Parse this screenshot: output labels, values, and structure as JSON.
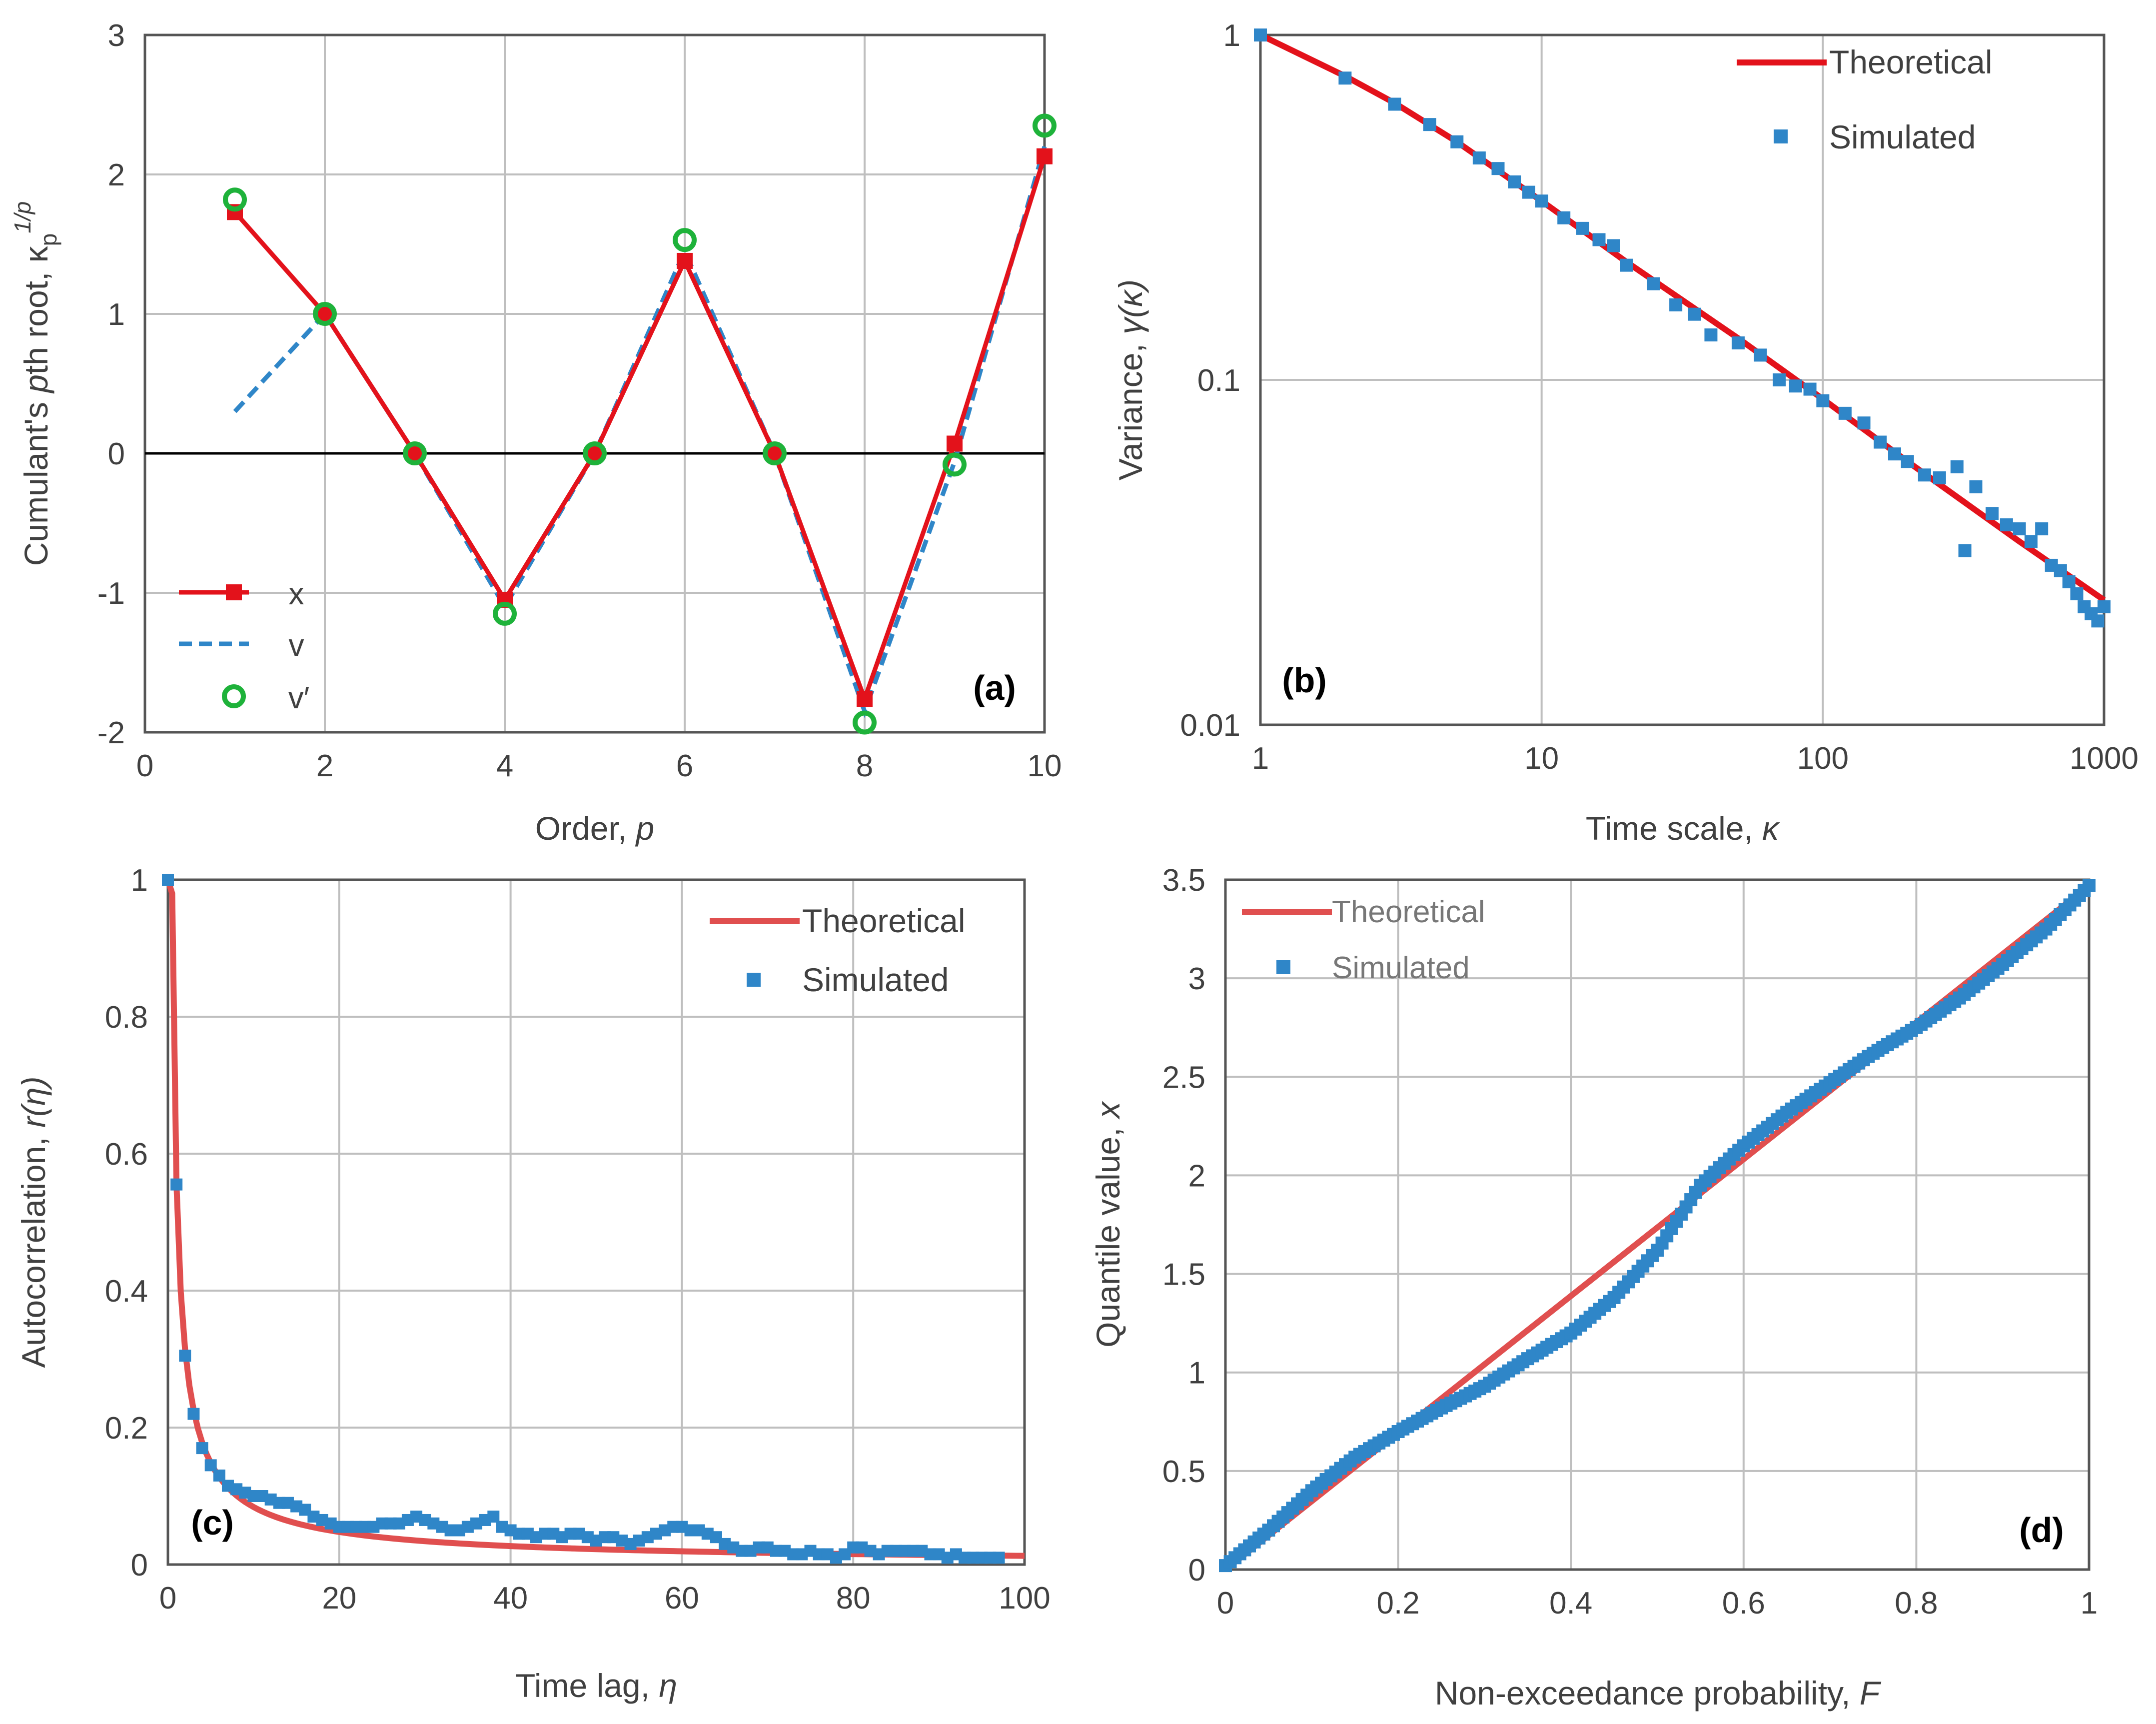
{
  "figure": {
    "colors": {
      "red": "#e3121b",
      "red_light": "#e04f4f",
      "blue": "#2f86c8",
      "green": "#1eb23a",
      "grid": "#bfbfbf",
      "axis": "#555555",
      "text": "#404040"
    }
  },
  "chart_data": [
    {
      "id": "a",
      "type": "line",
      "panel_label": "(a)",
      "xlabel": "Order, ",
      "xlabel_symbol": "p",
      "ylabel": "Cumulant's ",
      "ylabel_italic": "p",
      "ylabel_rest": "th root, κ",
      "ylabel_sub": "p",
      "ylabel_sup": "1/p",
      "xlim": [
        0,
        10
      ],
      "ylim": [
        -2,
        3
      ],
      "xticks": [
        0,
        2,
        4,
        6,
        8,
        10
      ],
      "yticks": [
        -2,
        -1,
        0,
        1,
        2,
        3
      ],
      "series": [
        {
          "name": "x",
          "style": "red-line-square",
          "x": [
            1,
            2,
            3,
            4,
            5,
            6,
            7,
            8,
            9,
            10
          ],
          "y": [
            1.73,
            1.0,
            0.0,
            -1.05,
            0.0,
            1.38,
            0.0,
            -1.76,
            0.07,
            2.13
          ]
        },
        {
          "name": "v",
          "style": "blue-dashed",
          "x": [
            1,
            2,
            3,
            4,
            5,
            6,
            7,
            8,
            9,
            10
          ],
          "y": [
            0.3,
            1.0,
            0.0,
            -1.1,
            0.0,
            1.45,
            0.0,
            -1.85,
            -0.06,
            2.2
          ]
        },
        {
          "name": "v′",
          "style": "green-circle",
          "x": [
            1,
            2,
            3,
            4,
            5,
            6,
            7,
            8,
            9,
            10
          ],
          "y": [
            1.82,
            1.0,
            0.0,
            -1.15,
            0.0,
            1.53,
            0.0,
            -1.93,
            -0.08,
            2.35
          ]
        }
      ],
      "legend": [
        "x",
        "v",
        "v′"
      ],
      "legend_position": "bottom-left"
    },
    {
      "id": "b",
      "type": "line+scatter",
      "scale": "log-log",
      "panel_label": "(b)",
      "xlabel": "Time scale, ",
      "xlabel_symbol": "κ",
      "ylabel": "Variance, ",
      "ylabel_symbol": "γ(κ)",
      "xlim": [
        1,
        1000
      ],
      "ylim": [
        0.01,
        1
      ],
      "xticks": [
        1,
        10,
        100,
        1000
      ],
      "xtick_labels": [
        "1",
        "10",
        "100",
        "1000"
      ],
      "yticks": [
        0.01,
        0.1,
        1
      ],
      "ytick_labels": [
        "0.01",
        "0.1",
        "1"
      ],
      "theoretical": {
        "name": "Theoretical",
        "x": [
          1,
          2,
          3,
          5,
          10,
          20,
          50,
          100,
          200,
          500,
          1000
        ],
        "y": [
          1.0,
          0.76,
          0.635,
          0.49,
          0.33,
          0.22,
          0.132,
          0.088,
          0.058,
          0.034,
          0.023
        ]
      },
      "simulated": {
        "name": "Simulated",
        "x": [
          1,
          2,
          3,
          4,
          5,
          6,
          7,
          8,
          9,
          10,
          12,
          14,
          16,
          18,
          20,
          25,
          30,
          35,
          40,
          50,
          60,
          70,
          80,
          90,
          100,
          120,
          140,
          160,
          180,
          200,
          230,
          260,
          300,
          320,
          350,
          400,
          450,
          500,
          550,
          600,
          650,
          700,
          750,
          800,
          850,
          900,
          950,
          1000
        ],
        "y": [
          1.0,
          0.75,
          0.63,
          0.55,
          0.49,
          0.44,
          0.41,
          0.375,
          0.35,
          0.33,
          0.295,
          0.275,
          0.255,
          0.245,
          0.215,
          0.19,
          0.165,
          0.155,
          0.135,
          0.128,
          0.118,
          0.1,
          0.096,
          0.094,
          0.087,
          0.08,
          0.075,
          0.066,
          0.061,
          0.058,
          0.053,
          0.052,
          0.056,
          0.032,
          0.049,
          0.041,
          0.038,
          0.037,
          0.034,
          0.037,
          0.029,
          0.028,
          0.026,
          0.024,
          0.022,
          0.021,
          0.02,
          0.022
        ]
      },
      "legend": [
        "Theoretical",
        "Simulated"
      ],
      "legend_position": "top-right"
    },
    {
      "id": "c",
      "type": "line+scatter",
      "panel_label": "(c)",
      "xlabel": "Time lag, ",
      "xlabel_symbol": "η",
      "ylabel": "Autocorrelation, ",
      "ylabel_symbol": "r(η)",
      "xlim": [
        0,
        100
      ],
      "ylim": [
        0,
        1
      ],
      "xticks": [
        0,
        20,
        40,
        60,
        80,
        100
      ],
      "yticks": [
        0,
        0.2,
        0.4,
        0.6,
        0.8,
        1
      ],
      "ytick_labels": [
        "0",
        "0.2",
        "0.4",
        "0.6",
        "0.8",
        "1"
      ],
      "theoretical": {
        "name": "Theoretical"
      },
      "simulated": {
        "name": "Simulated",
        "x": [
          0,
          1,
          2,
          3,
          4,
          5,
          6,
          7,
          8,
          9,
          10,
          11,
          12,
          13,
          14,
          15,
          16,
          17,
          18,
          19,
          20,
          21,
          22,
          23,
          24,
          25,
          26,
          27,
          28,
          29,
          30,
          31,
          32,
          33,
          34,
          35,
          36,
          37,
          38,
          39,
          40,
          41,
          42,
          43,
          44,
          45,
          46,
          47,
          48,
          49,
          50,
          51,
          52,
          53,
          54,
          55,
          56,
          57,
          58,
          59,
          60,
          61,
          62,
          63,
          64,
          65,
          66,
          67,
          68,
          69,
          70,
          71,
          72,
          73,
          74,
          75,
          76,
          77,
          78,
          79,
          80,
          81,
          82,
          83,
          84,
          85,
          86,
          87,
          88,
          89,
          90,
          91,
          92,
          93,
          94,
          95,
          96,
          97
        ],
        "y": [
          1.0,
          0.555,
          0.305,
          0.22,
          0.17,
          0.145,
          0.13,
          0.115,
          0.11,
          0.105,
          0.1,
          0.1,
          0.095,
          0.09,
          0.09,
          0.085,
          0.08,
          0.07,
          0.065,
          0.06,
          0.055,
          0.055,
          0.055,
          0.055,
          0.055,
          0.06,
          0.06,
          0.06,
          0.065,
          0.07,
          0.065,
          0.06,
          0.055,
          0.05,
          0.05,
          0.055,
          0.06,
          0.065,
          0.07,
          0.055,
          0.05,
          0.045,
          0.045,
          0.04,
          0.045,
          0.045,
          0.04,
          0.045,
          0.045,
          0.04,
          0.035,
          0.04,
          0.04,
          0.035,
          0.03,
          0.035,
          0.04,
          0.045,
          0.05,
          0.055,
          0.055,
          0.05,
          0.05,
          0.045,
          0.04,
          0.03,
          0.025,
          0.02,
          0.02,
          0.025,
          0.025,
          0.02,
          0.02,
          0.015,
          0.015,
          0.02,
          0.015,
          0.015,
          0.01,
          0.015,
          0.025,
          0.025,
          0.02,
          0.015,
          0.02,
          0.02,
          0.02,
          0.02,
          0.02,
          0.015,
          0.015,
          0.01,
          0.015,
          0.01,
          0.01,
          0.01,
          0.01,
          0.01
        ]
      },
      "legend": [
        "Theoretical",
        "Simulated"
      ],
      "legend_position": "top-right"
    },
    {
      "id": "d",
      "type": "line+scatter",
      "panel_label": "(d)",
      "xlabel": "Non-exceedance probability, ",
      "xlabel_symbol": "F",
      "ylabel": "Quantile value, ",
      "ylabel_symbol": "x",
      "xlim": [
        0,
        1
      ],
      "ylim": [
        0,
        3.5
      ],
      "xticks": [
        0,
        0.2,
        0.4,
        0.6,
        0.8,
        1
      ],
      "xtick_labels": [
        "0",
        "0.2",
        "0.4",
        "0.6",
        "0.8",
        "1"
      ],
      "yticks": [
        0,
        0.5,
        1,
        1.5,
        2,
        2.5,
        3,
        3.5
      ],
      "ytick_labels": [
        "0",
        "0.5",
        "1",
        "1.5",
        "2",
        "2.5",
        "3",
        "3.5"
      ],
      "theoretical": {
        "name": "Theoretical",
        "x": [
          0,
          1
        ],
        "y": [
          0,
          3.47
        ]
      },
      "simulated": {
        "name": "Simulated",
        "x": [
          0.0,
          0.05,
          0.1,
          0.15,
          0.2,
          0.25,
          0.3,
          0.35,
          0.4,
          0.45,
          0.5,
          0.55,
          0.6,
          0.65,
          0.7,
          0.75,
          0.8,
          0.85,
          0.9,
          0.95,
          1.0
        ],
        "y": [
          0.02,
          0.2,
          0.4,
          0.57,
          0.7,
          0.82,
          0.93,
          1.07,
          1.2,
          1.38,
          1.62,
          1.95,
          2.15,
          2.32,
          2.47,
          2.62,
          2.75,
          2.9,
          3.07,
          3.25,
          3.47
        ]
      },
      "legend": [
        "Theoretical",
        "Simulated"
      ],
      "legend_position": "top-left"
    }
  ]
}
